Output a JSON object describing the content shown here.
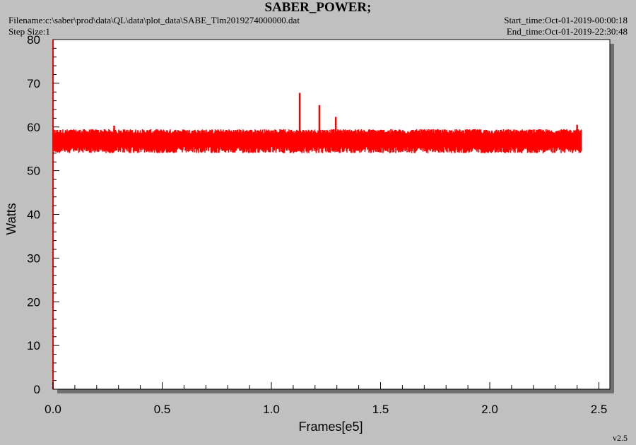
{
  "header": {
    "title": "SABER_POWER;",
    "filename": "Filename:c:\\saber\\prod\\data\\QL\\data\\plot_data\\SABE_Tlm2019274000000.dat",
    "step_size": "Step Size:1",
    "start_time": "Start_time:Oct-01-2019-00:00:18",
    "end_time": "End_time:Oct-01-2019-22:30:48",
    "version": "v2.5"
  },
  "colors": {
    "background": "#c0c0c0",
    "plot_area": "#ffffff",
    "shadow": "#707070",
    "series": "#ff0000"
  },
  "chart_data": {
    "type": "line",
    "title": "SABER_POWER;",
    "xlabel": "Frames[e5]",
    "ylabel": "Watts",
    "xlim": [
      0,
      2.55
    ],
    "ylim": [
      0,
      80
    ],
    "xticks": [
      "0.0",
      "0.5",
      "1.0",
      "1.5",
      "2.0",
      "2.5"
    ],
    "xtick_values": [
      0,
      0.5,
      1.0,
      1.5,
      2.0,
      2.5
    ],
    "yticks": [
      "0",
      "10",
      "20",
      "30",
      "40",
      "50",
      "60",
      "70",
      "80"
    ],
    "ytick_values": [
      0,
      10,
      20,
      30,
      40,
      50,
      60,
      70,
      80
    ],
    "grid": false,
    "series": [
      {
        "color": "#ff0000",
        "x_range": [
          0.0,
          2.42
        ],
        "baseline": 57.0,
        "band": [
          54.0,
          59.5
        ],
        "spikes": [
          {
            "x": 0.28,
            "y": 60.3
          },
          {
            "x": 1.13,
            "y": 67.8
          },
          {
            "x": 1.22,
            "y": 65.0
          },
          {
            "x": 1.295,
            "y": 62.3
          },
          {
            "x": 2.4,
            "y": 60.5
          }
        ]
      }
    ]
  }
}
